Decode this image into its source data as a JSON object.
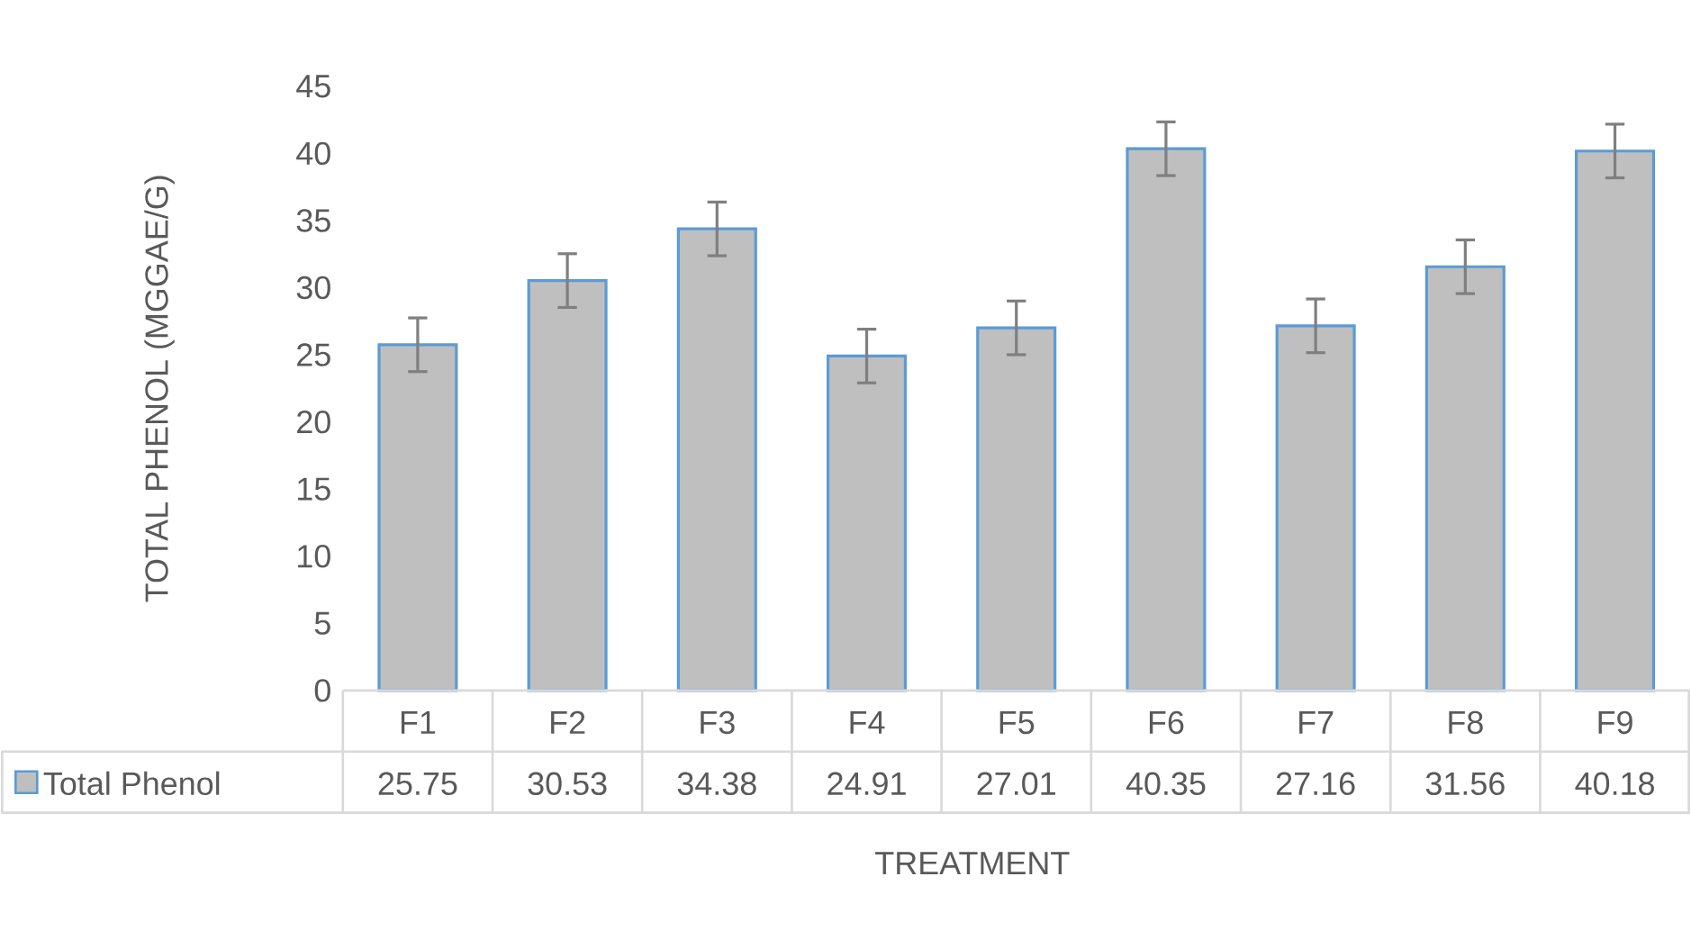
{
  "chart_data": {
    "type": "bar",
    "xlabel": "TREATMENT",
    "ylabel": "TOTAL PHENOL (MGGAE/G)",
    "categories": [
      "F1",
      "F2",
      "F3",
      "F4",
      "F5",
      "F6",
      "F7",
      "F8",
      "F9"
    ],
    "series": [
      {
        "name": "Total Phenol",
        "color": "#bfbfbf",
        "values": [
          25.75,
          30.53,
          34.38,
          24.91,
          27.01,
          40.35,
          27.16,
          31.56,
          40.18
        ],
        "errors": [
          2,
          2,
          2,
          2,
          2,
          2,
          2,
          2,
          2
        ]
      }
    ],
    "ylim": [
      0,
      45
    ],
    "yticks": [
      0,
      5,
      10,
      15,
      20,
      25,
      30,
      35,
      40,
      45
    ],
    "data_labels": true,
    "legend": "bottom",
    "grid": false
  }
}
